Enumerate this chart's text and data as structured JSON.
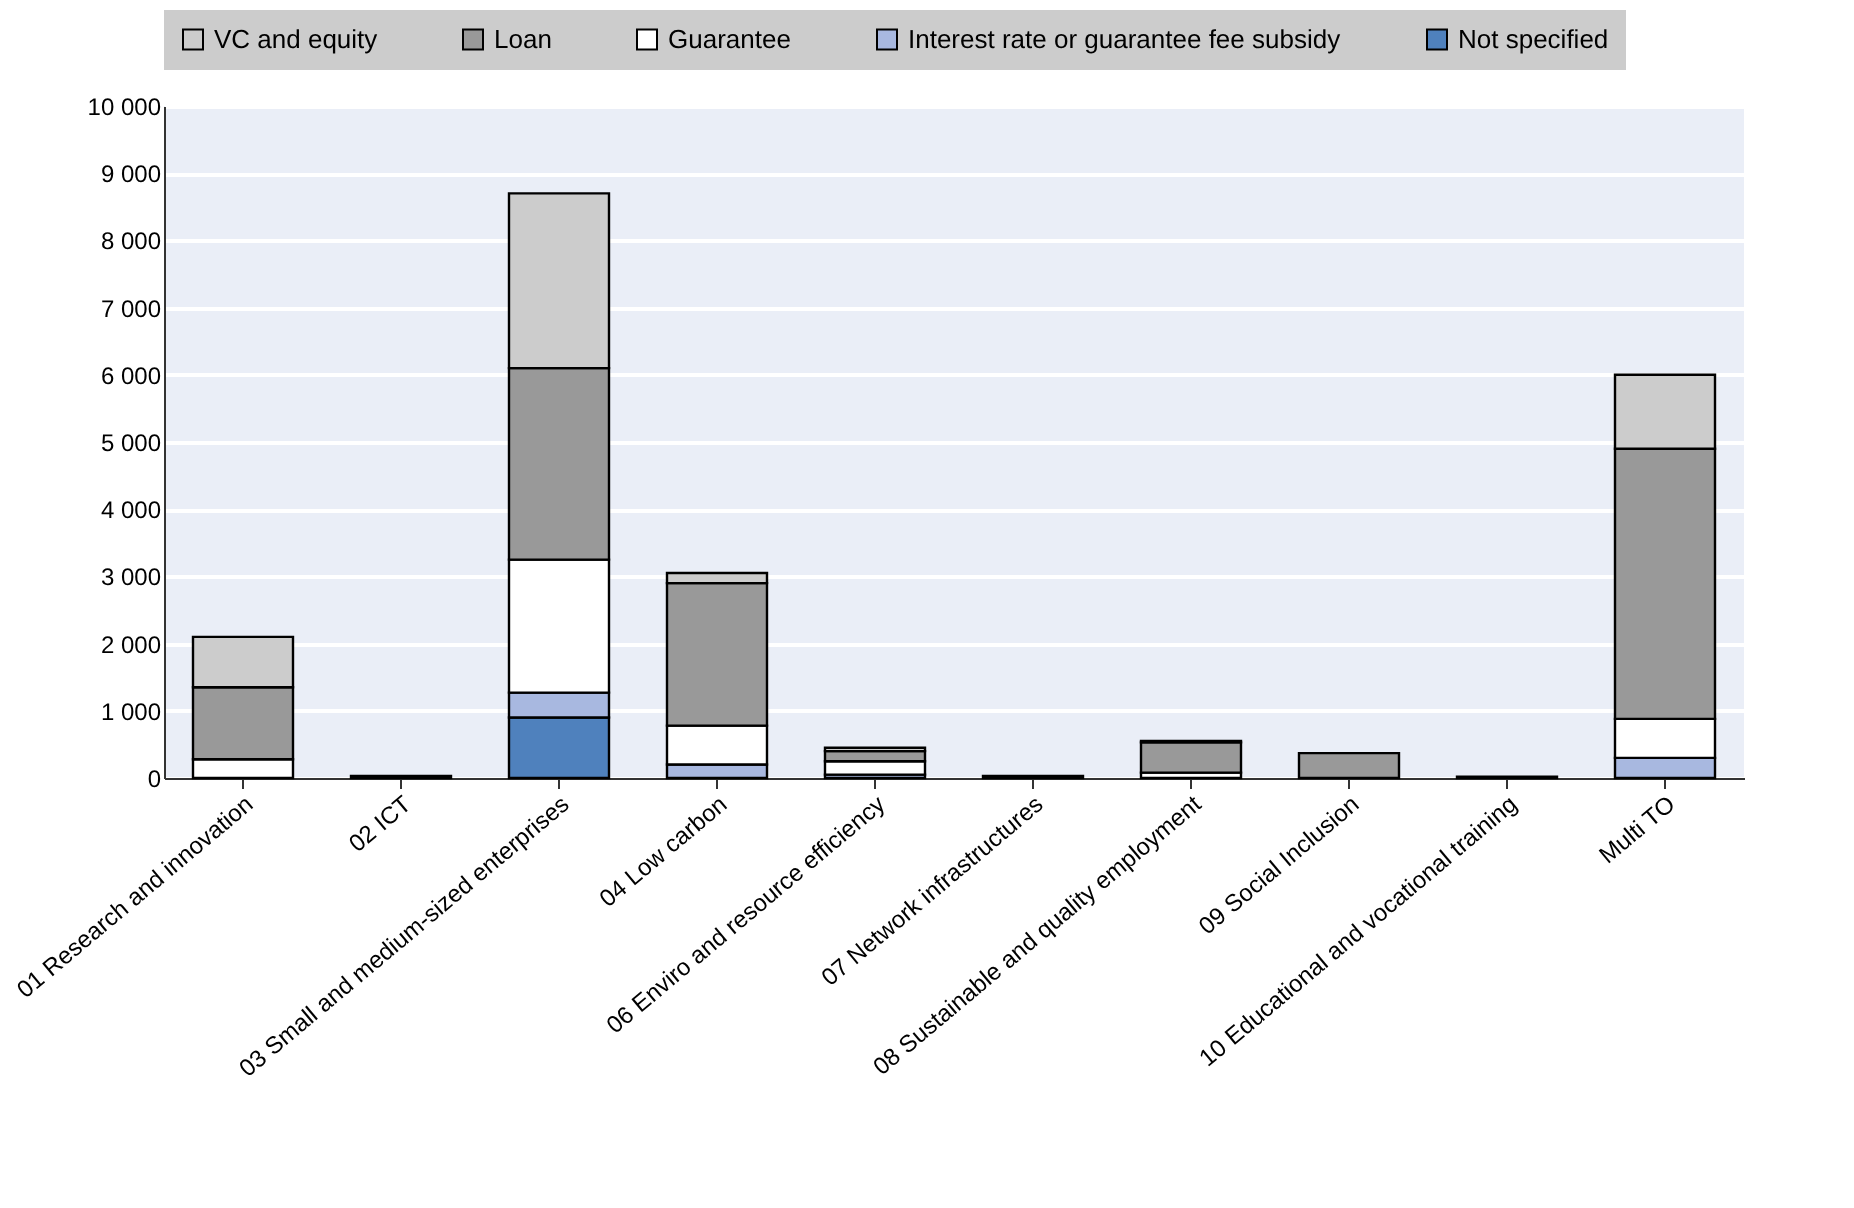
{
  "chart_data": {
    "type": "bar",
    "stacked": true,
    "legend": "top",
    "grid": "y",
    "categories": [
      "01 Research and innovation",
      "02 ICT",
      "03 Small and medium-sized enterprises",
      "04 Low carbon",
      "06 Enviro and resource efficiency",
      "07 Network infrastructures",
      "08 Sustainable and quality employment",
      "09 Social Inclusion",
      "10 Educational and vocational training",
      "Multi TO"
    ],
    "series": [
      {
        "name": "Not specified",
        "color": "#4f81bd",
        "values": [
          0,
          0,
          900,
          0,
          0,
          0,
          0,
          0,
          0,
          0
        ]
      },
      {
        "name": "Interest rate or guarantee fee subsidy",
        "color": "#a8b8e0",
        "values": [
          0,
          0,
          370,
          200,
          50,
          0,
          0,
          0,
          0,
          300
        ]
      },
      {
        "name": "Guarantee",
        "color": "#ffffff",
        "values": [
          280,
          0,
          1980,
          580,
          200,
          0,
          80,
          0,
          0,
          580
        ]
      },
      {
        "name": "Loan",
        "color": "#999999",
        "values": [
          1070,
          30,
          2850,
          2120,
          150,
          30,
          450,
          370,
          20,
          4020
        ]
      },
      {
        "name": "VC and equity",
        "color": "#cccccc",
        "values": [
          750,
          0,
          2600,
          150,
          50,
          0,
          20,
          0,
          0,
          1100
        ]
      }
    ],
    "ylim": [
      0,
      10000
    ],
    "yticks": [
      {
        "value": 0,
        "label": "0"
      },
      {
        "value": 1000,
        "label": "1 000"
      },
      {
        "value": 2000,
        "label": "2 000"
      },
      {
        "value": 3000,
        "label": "3 000"
      },
      {
        "value": 4000,
        "label": "4 000"
      },
      {
        "value": 5000,
        "label": "5 000"
      },
      {
        "value": 6000,
        "label": "6 000"
      },
      {
        "value": 7000,
        "label": "7 000"
      },
      {
        "value": 8000,
        "label": "8 000"
      },
      {
        "value": 9000,
        "label": "9 000"
      },
      {
        "value": 10000,
        "label": "10 000"
      }
    ]
  }
}
